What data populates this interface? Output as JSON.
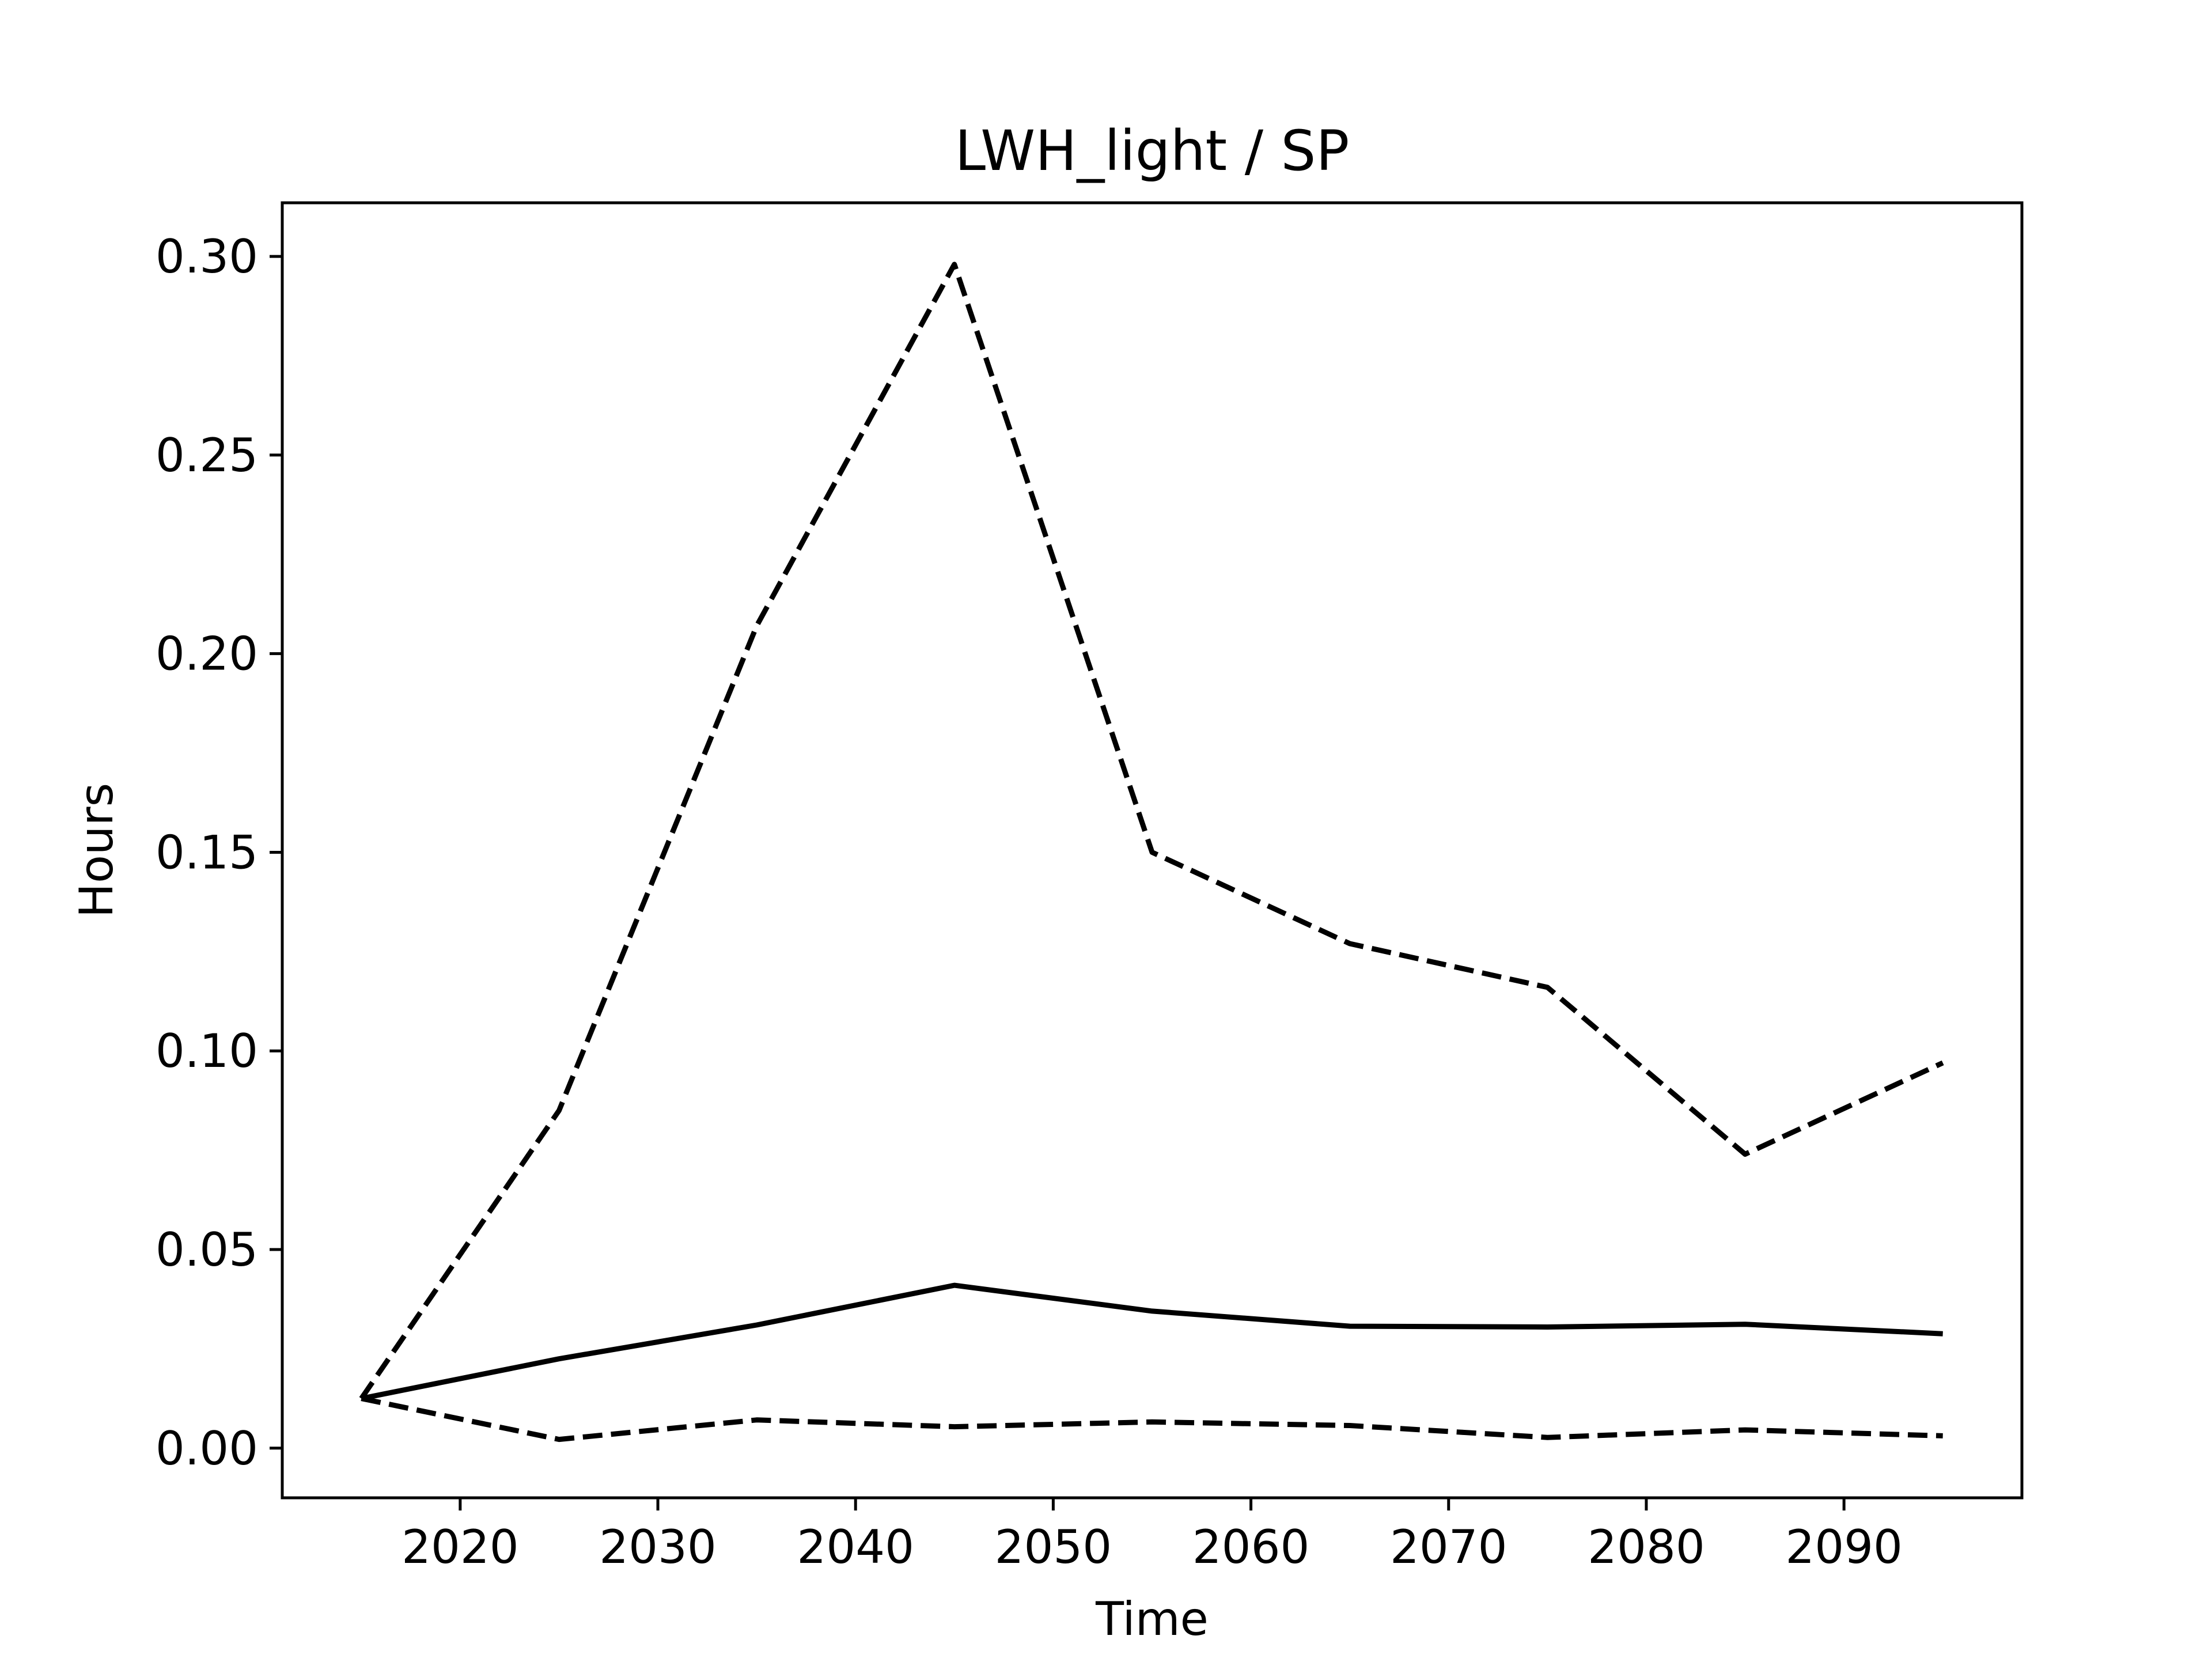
{
  "chart_data": {
    "type": "line",
    "title": "LWH_light / SP",
    "xlabel": "Time",
    "ylabel": "Hours",
    "xlim": [
      2011,
      2099
    ],
    "ylim": [
      -0.0125,
      0.3135
    ],
    "x_ticks": [
      2020,
      2030,
      2040,
      2050,
      2060,
      2070,
      2080,
      2090
    ],
    "x_tick_labels": [
      "2020",
      "2030",
      "2040",
      "2050",
      "2060",
      "2070",
      "2080",
      "2090"
    ],
    "y_ticks": [
      0.0,
      0.05,
      0.1,
      0.15,
      0.2,
      0.25,
      0.3
    ],
    "y_tick_labels": [
      "0.00",
      "0.05",
      "0.10",
      "0.15",
      "0.20",
      "0.25",
      "0.30"
    ],
    "grid": false,
    "x": [
      2015,
      2025,
      2035,
      2045,
      2055,
      2065,
      2075,
      2085,
      2095
    ],
    "series": [
      {
        "style": "solid",
        "color": "#000000",
        "values": [
          0.0125,
          0.0225,
          0.031,
          0.041,
          0.0345,
          0.0307,
          0.0305,
          0.0312,
          0.0288
        ]
      },
      {
        "style": "dashed",
        "color": "#000000",
        "values": [
          0.0125,
          0.085,
          0.207,
          0.298,
          0.15,
          0.127,
          0.116,
          0.074,
          0.097
        ]
      },
      {
        "style": "dashed",
        "color": "#000000",
        "values": [
          0.0125,
          0.0022,
          0.0071,
          0.0054,
          0.0066,
          0.0057,
          0.0027,
          0.0046,
          0.0031
        ]
      }
    ]
  }
}
